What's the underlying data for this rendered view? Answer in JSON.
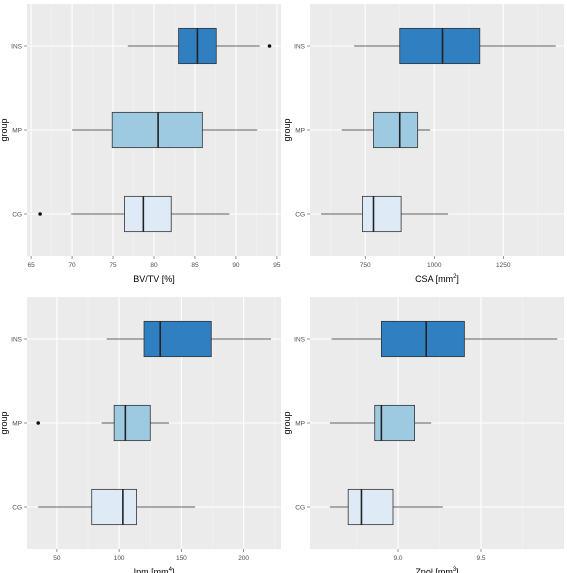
{
  "chart_data": [
    {
      "type": "boxplot",
      "orientation": "horizontal",
      "ylabel": "group",
      "xlabel": "BV/TV [%]",
      "xlim": [
        64.5,
        95.5
      ],
      "xticks": [
        65,
        70,
        75,
        80,
        85,
        90,
        95
      ],
      "categories": [
        "INS",
        "MP",
        "CG"
      ],
      "boxes": [
        {
          "group": "INS",
          "whisker_low": 76.8,
          "q1": 83.0,
          "median": 85.3,
          "q3": 87.6,
          "whisker_high": 92.9,
          "outliers": [
            94.1
          ],
          "fill": "#2f7fc1"
        },
        {
          "group": "MP",
          "whisker_low": 70.0,
          "q1": 74.9,
          "median": 80.5,
          "q3": 85.9,
          "whisker_high": 92.6,
          "outliers": [],
          "fill": "#9ecae1"
        },
        {
          "group": "CG",
          "whisker_low": 69.9,
          "q1": 76.4,
          "median": 78.7,
          "q3": 82.1,
          "whisker_high": 89.2,
          "outliers": [
            66.1
          ],
          "fill": "#deebf7"
        }
      ]
    },
    {
      "type": "boxplot",
      "orientation": "horizontal",
      "ylabel": "group",
      "xlabel": "CSA [mm",
      "xlabel_sup": "2",
      "xlabel_suffix": "]",
      "xlim": [
        550,
        1470
      ],
      "xticks": [
        750,
        1000,
        1250
      ],
      "categories": [
        "INS",
        "MP",
        "CG"
      ],
      "boxes": [
        {
          "group": "INS",
          "whisker_low": 710,
          "q1": 875,
          "median": 1030,
          "q3": 1165,
          "whisker_high": 1440,
          "outliers": [],
          "fill": "#2f7fc1"
        },
        {
          "group": "MP",
          "whisker_low": 665,
          "q1": 780,
          "median": 875,
          "q3": 940,
          "whisker_high": 985,
          "outliers": [],
          "fill": "#9ecae1"
        },
        {
          "group": "CG",
          "whisker_low": 590,
          "q1": 740,
          "median": 780,
          "q3": 880,
          "whisker_high": 1050,
          "outliers": [],
          "fill": "#deebf7"
        }
      ]
    },
    {
      "type": "boxplot",
      "orientation": "horizontal",
      "ylabel": "group",
      "xlabel": "Ipm [mm",
      "xlabel_sup": "4",
      "xlabel_suffix": "]",
      "xlim": [
        26,
        230
      ],
      "xticks": [
        50,
        100,
        150,
        200
      ],
      "categories": [
        "INS",
        "MP",
        "CG"
      ],
      "boxes": [
        {
          "group": "INS",
          "whisker_low": 90,
          "q1": 120,
          "median": 133,
          "q3": 174,
          "whisker_high": 222,
          "outliers": [],
          "fill": "#2f7fc1"
        },
        {
          "group": "MP",
          "whisker_low": 86,
          "q1": 96,
          "median": 105,
          "q3": 125,
          "whisker_high": 140,
          "outliers": [
            35
          ],
          "fill": "#9ecae1"
        },
        {
          "group": "CG",
          "whisker_low": 35,
          "q1": 78,
          "median": 103,
          "q3": 114,
          "whisker_high": 161,
          "outliers": [],
          "fill": "#deebf7"
        }
      ]
    },
    {
      "type": "boxplot",
      "orientation": "horizontal",
      "ylabel": "group",
      "xlabel": "Zpol [mm",
      "xlabel_sup": "3",
      "xlabel_suffix": "]",
      "xlim": [
        8.47,
        10.0
      ],
      "xticks": [
        9.0,
        9.5
      ],
      "xtick_labels": [
        "9.0",
        "9.5"
      ],
      "categories": [
        "INS",
        "MP",
        "CG"
      ],
      "boxes": [
        {
          "group": "INS",
          "whisker_low": 8.6,
          "q1": 8.9,
          "median": 9.17,
          "q3": 9.4,
          "whisker_high": 9.96,
          "outliers": [],
          "fill": "#2f7fc1"
        },
        {
          "group": "MP",
          "whisker_low": 8.59,
          "q1": 8.86,
          "median": 8.9,
          "q3": 9.1,
          "whisker_high": 9.2,
          "outliers": [],
          "fill": "#9ecae1"
        },
        {
          "group": "CG",
          "whisker_low": 8.59,
          "q1": 8.7,
          "median": 8.78,
          "q3": 8.97,
          "whisker_high": 9.27,
          "outliers": [],
          "fill": "#deebf7"
        }
      ]
    }
  ],
  "style": {
    "panel_background": "#ebebeb",
    "grid_major": "#ffffff",
    "grid_minor": "#f4f4f4",
    "axis_text": "#4d4d4d",
    "title_text": "#000000"
  }
}
